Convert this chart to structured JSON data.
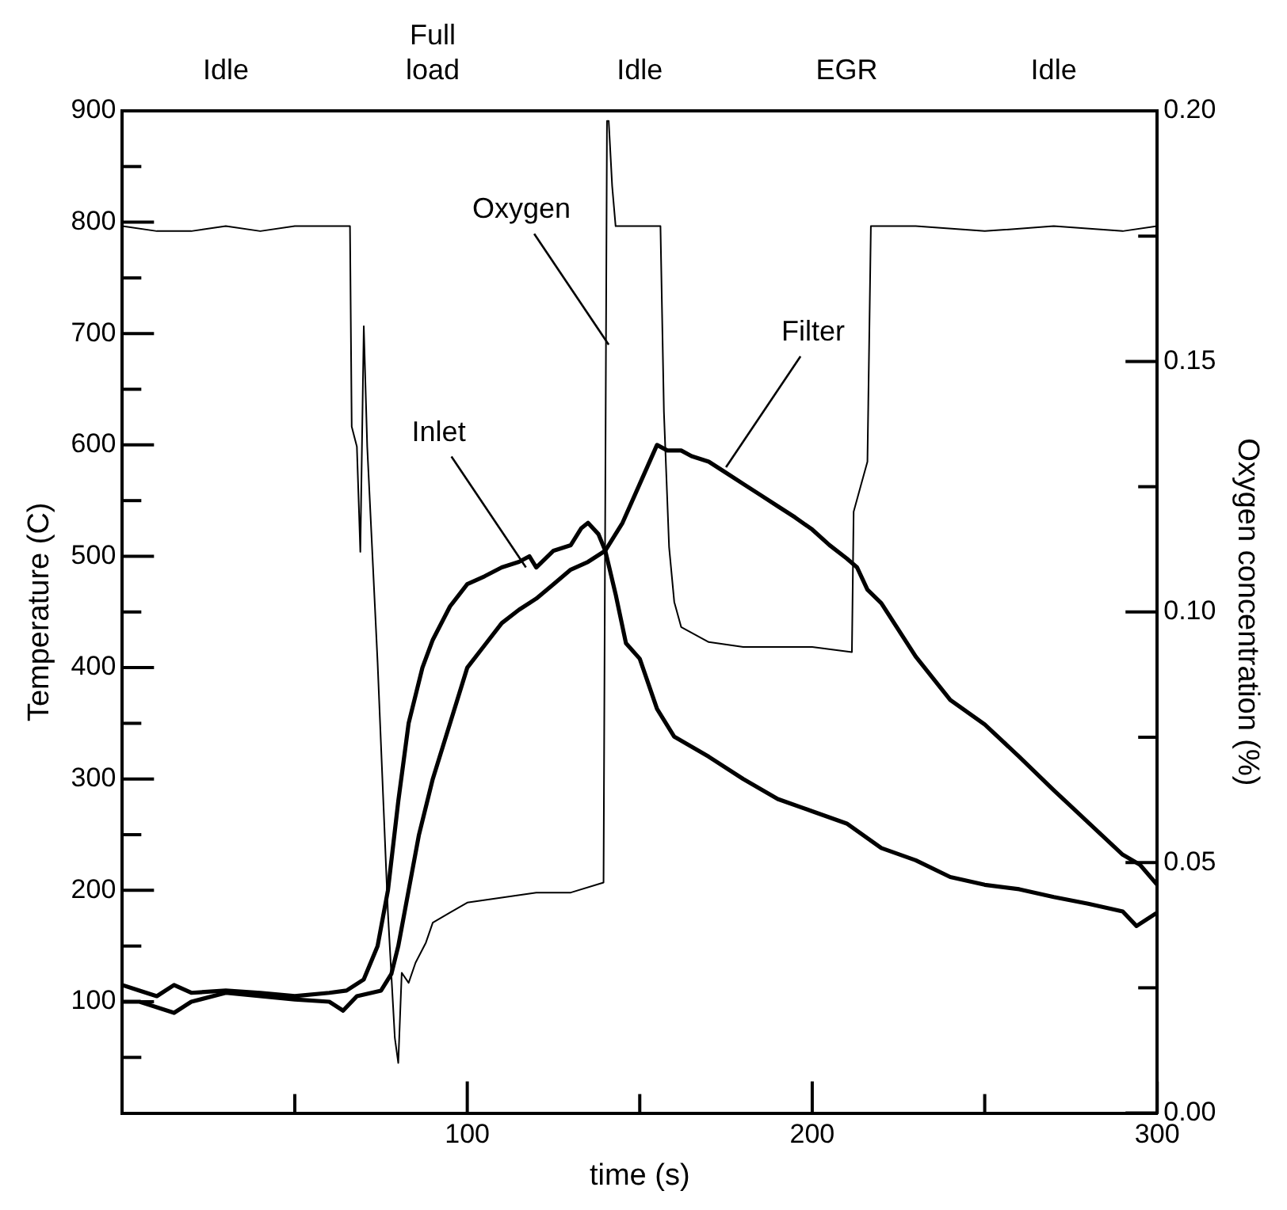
{
  "chart_data": {
    "type": "line",
    "xlabel": "time (s)",
    "ylabel": "Temperature (C)",
    "y2label": "Oxygen concentration (%)",
    "xlim": [
      0,
      300
    ],
    "xticks": [
      {
        "value": 50,
        "label": null
      },
      100,
      {
        "value": 150,
        "label": null
      },
      200,
      {
        "value": 250,
        "label": null
      },
      300
    ],
    "ylim": [
      0,
      900
    ],
    "yticks": [
      {
        "value": 50,
        "label": null
      },
      100,
      {
        "value": 150,
        "label": null
      },
      200,
      {
        "value": 250,
        "label": null
      },
      300,
      {
        "value": 350,
        "label": null
      },
      400,
      {
        "value": 450,
        "label": null
      },
      500,
      {
        "value": 550,
        "label": null
      },
      600,
      {
        "value": 650,
        "label": null
      },
      700,
      {
        "value": 750,
        "label": null
      },
      800,
      {
        "value": 850,
        "label": null
      },
      900
    ],
    "y2lim": [
      0,
      0.2
    ],
    "y2ticks": [
      {
        "value": 0,
        "label": "0.00"
      },
      {
        "value": 0.025,
        "label": null
      },
      {
        "value": 0.05,
        "label": "0.05"
      },
      {
        "value": 0.075,
        "label": null
      },
      {
        "value": 0.1,
        "label": "0.10"
      },
      {
        "value": 0.125,
        "label": null
      },
      {
        "value": 0.15,
        "label": "0.15"
      },
      {
        "value": 0.175,
        "label": null
      },
      {
        "value": 0.2,
        "label": "0.20"
      }
    ],
    "grid": false,
    "legend": false,
    "marker": "none",
    "line_style": "solid",
    "series": [
      {
        "color": "#000000",
        "axis": "y2",
        "x": [
          0,
          10,
          20,
          30,
          40,
          50,
          60,
          66,
          66.5,
          68,
          69,
          70,
          71,
          74,
          77,
          79,
          80,
          81,
          83,
          85,
          88,
          90,
          95,
          100,
          110,
          120,
          130,
          139.5,
          140.5,
          141,
          142,
          143,
          150,
          156,
          157,
          158.5,
          160,
          162,
          170,
          180,
          190,
          200,
          211.5,
          212,
          214,
          216,
          217,
          230,
          250,
          270,
          290,
          300
        ],
        "values": [
          0.177,
          0.176,
          0.176,
          0.177,
          0.176,
          0.177,
          0.177,
          0.177,
          0.137,
          0.133,
          0.112,
          0.157,
          0.133,
          0.09,
          0.04,
          0.015,
          0.01,
          0.028,
          0.026,
          0.03,
          0.034,
          0.038,
          0.04,
          0.042,
          0.043,
          0.044,
          0.044,
          0.046,
          0.198,
          0.198,
          0.185,
          0.177,
          0.177,
          0.177,
          0.14,
          0.113,
          0.102,
          0.097,
          0.094,
          0.093,
          0.093,
          0.093,
          0.092,
          0.12,
          0.125,
          0.13,
          0.177,
          0.177,
          0.176,
          0.177,
          0.176,
          0.177
        ]
      },
      {
        "color": "#000000",
        "x": [
          0,
          5,
          10,
          15,
          20,
          30,
          40,
          50,
          60,
          65,
          70,
          74,
          77,
          80,
          83,
          87,
          90,
          95,
          100,
          105,
          110,
          115,
          118,
          120,
          125,
          130,
          133,
          135,
          138,
          140,
          143,
          146,
          150,
          155,
          160,
          170,
          180,
          190,
          200,
          210,
          220,
          230,
          240,
          250,
          260,
          270,
          280,
          290,
          294,
          300
        ],
        "values": [
          115,
          110,
          105,
          115,
          108,
          110,
          108,
          105,
          108,
          110,
          120,
          150,
          200,
          280,
          350,
          400,
          425,
          455,
          475,
          482,
          490,
          495,
          500,
          490,
          505,
          510,
          525,
          530,
          520,
          505,
          466,
          422,
          408,
          363,
          338,
          320,
          300,
          282,
          271,
          260,
          238,
          227,
          212,
          205,
          201,
          194,
          188,
          181,
          168,
          180
        ]
      },
      {
        "color": "#000000",
        "x": [
          0,
          5,
          15,
          20,
          30,
          40,
          50,
          60,
          64,
          68,
          75,
          78,
          80,
          83,
          86,
          90,
          95,
          100,
          105,
          110,
          115,
          120,
          125,
          130,
          135,
          140,
          145,
          150,
          155,
          158,
          162,
          165,
          170,
          175,
          180,
          185,
          190,
          195,
          200,
          205,
          210,
          213,
          216,
          220,
          230,
          240,
          250,
          260,
          270,
          280,
          290,
          295,
          300
        ],
        "values": [
          100,
          100,
          90,
          100,
          108,
          105,
          102,
          100,
          92,
          105,
          110,
          125,
          150,
          200,
          250,
          300,
          350,
          400,
          420,
          440,
          452,
          462,
          475,
          488,
          495,
          505,
          530,
          565,
          600,
          595,
          595,
          590,
          585,
          575,
          565,
          555,
          545,
          535,
          524,
          510,
          498,
          490,
          470,
          458,
          410,
          371,
          349,
          320,
          290,
          261,
          232,
          223,
          205
        ]
      }
    ],
    "annotations": [
      "Idle",
      "Full\nload",
      "Idle",
      "EGR",
      "Idle",
      {
        "text": "Oxygen",
        "x": 141,
        "y": 690
      },
      {
        "text": "Inlet",
        "x": 117,
        "y": 490
      },
      {
        "text": "Filter",
        "x": 175,
        "y": 580
      }
    ]
  }
}
